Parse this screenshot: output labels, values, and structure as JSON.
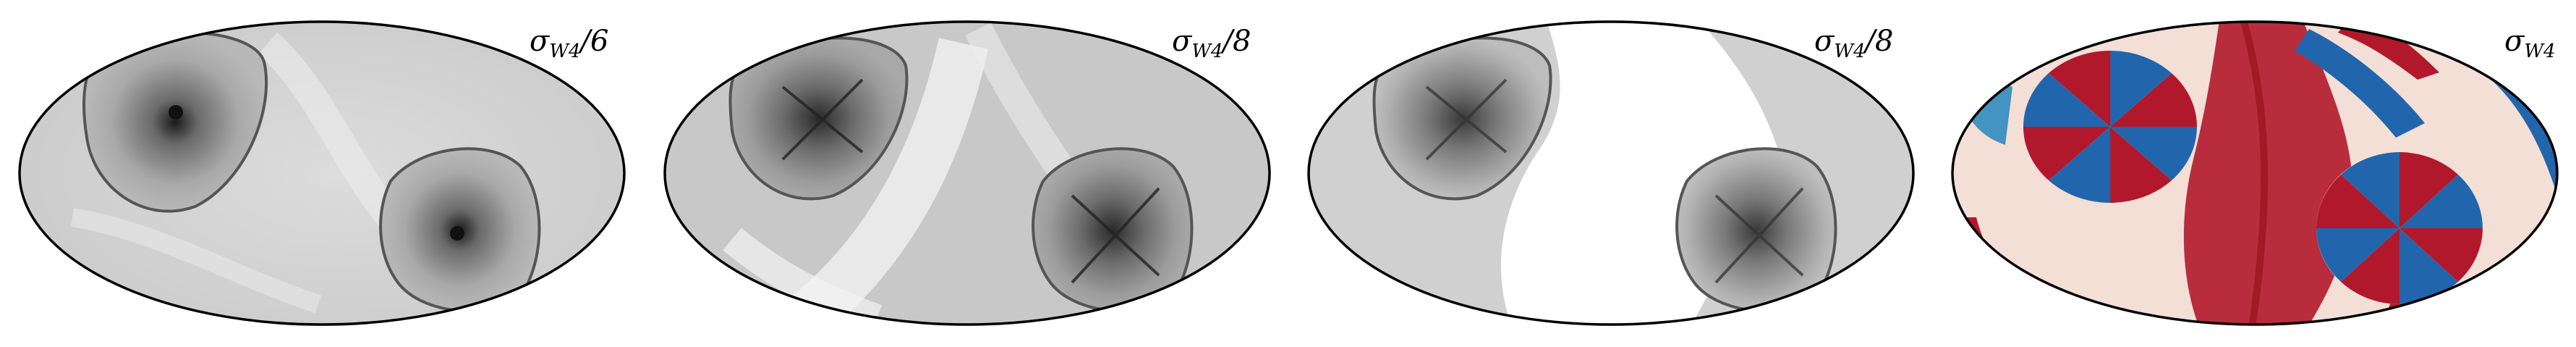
{
  "panels": [
    {
      "label": "σ_{W4}/6",
      "label_text": "σW4/6",
      "colormap": "grayscale",
      "contrast": "medium"
    },
    {
      "label": "σ_{W4}/8",
      "label_text": "σW4/8",
      "colormap": "grayscale",
      "contrast": "medium"
    },
    {
      "label": "σ_{W4}/8",
      "label_text": "σW4/8",
      "colormap": "grayscale",
      "contrast": "high"
    },
    {
      "label": "σ_{W4}",
      "label_text": "σW4",
      "colormap": "diverging-red-blue",
      "contrast": "high"
    }
  ],
  "colors": {
    "outline": "#000000",
    "red": "#b2182b",
    "blue": "#2166ac",
    "gray_dark": "#404040",
    "gray_light": "#e8e8e8"
  }
}
